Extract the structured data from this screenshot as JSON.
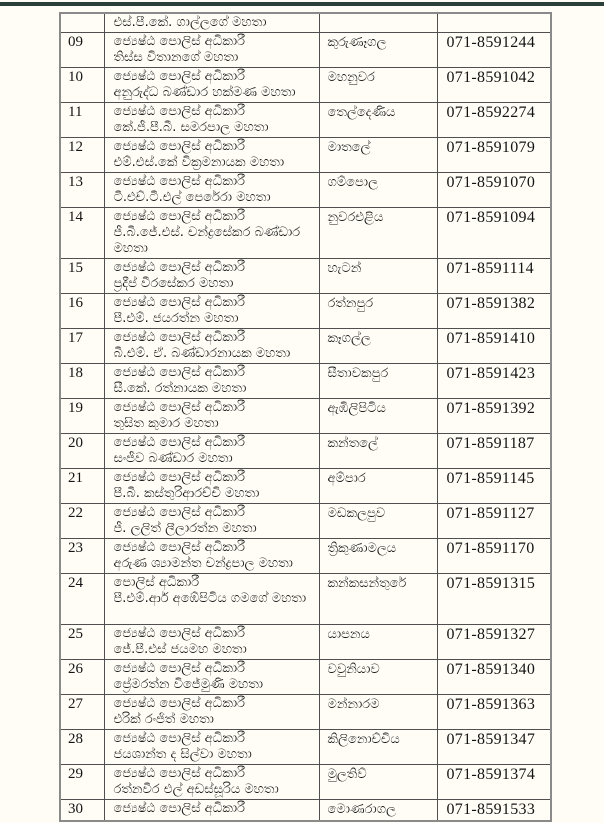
{
  "page": {
    "background_color": "#fffdf6",
    "top_bar_color": "#2b4038",
    "text_color": "#141414"
  },
  "table": {
    "columns": [
      "no",
      "officer",
      "location",
      "phone"
    ],
    "rows": [
      {
        "no": "",
        "title": "",
        "person": "එස්.පී.කේ. ගාල්ලගේ මහතා",
        "location": "",
        "phone": "",
        "lines": 1
      },
      {
        "no": "09",
        "title": "ජ්‍යෙෂ්ඨ පොලිස් අධිකාරී",
        "person": "තිස්ස විතානගේ මහතා",
        "location": "කුරුණෑගල",
        "phone": "071-8591244",
        "lines": 2
      },
      {
        "no": "10",
        "title": "ජ්‍යෙෂ්ඨ පොලිස් අධිකාරී",
        "person": "අනුරුද්ධ බණ්ඩාර හක්මණ මහතා",
        "location": "මහනුවර",
        "phone": "071-8591042",
        "lines": 2
      },
      {
        "no": "11",
        "title": "ජ්‍යෙෂ්ඨ පොලිස් අධිකාරී",
        "person": "කේ.ජී.පී.බී. සමරපාල මහතා",
        "location": "තෙල්දෙණිය",
        "phone": "071-8592274",
        "lines": 2
      },
      {
        "no": "12",
        "title": "ජ්‍යෙෂ්ඨ පොලිස් අධිකාරී",
        "person": "එම්.එස්.කේ වික්‍රමනායක මහතා",
        "location": "මාතලේ",
        "phone": "071-8591079",
        "lines": 2
      },
      {
        "no": "13",
        "title": "ජ්‍යෙෂ්ඨ පොලිස් අධිකාරී",
        "person": "ටී.එච්.ටී.එල් පෙරේරා මහතා",
        "location": "ගම්පොල",
        "phone": "071-8591070",
        "lines": 2
      },
      {
        "no": "14",
        "title": "ජ්‍යෙෂ්ඨ පොලිස් අධිකාරී",
        "person": "ජී.බී.ජේ.එස්. චන්ද්‍රසේකර බණ්ඩාර මහතා",
        "location": "නුවරඑළිය",
        "phone": "071-8591094",
        "lines": 3
      },
      {
        "no": "15",
        "title": "ජ්‍යෙෂ්ඨ පොලිස් අධිකාරී",
        "person": "ප්‍රදීප් වීරසේකර මහතා",
        "location": "හැටන්",
        "phone": "071-8591114",
        "lines": 2
      },
      {
        "no": "16",
        "title": "ජ්‍යෙෂ්ඨ පොලිස් අධිකාරී",
        "person": "පී.එම්. ජයරත්න  මහතා",
        "location": "රත්නපුර",
        "phone": "071-8591382",
        "lines": 2
      },
      {
        "no": "17",
        "title": "ජ්‍යෙෂ්ඨ පොලිස් අධිකාරී",
        "person": "බී.එම්. ඒ. බණ්ඩාරනායක මහතා",
        "location": "කෑගල්ල",
        "phone": "071-8591410",
        "lines": 2
      },
      {
        "no": "18",
        "title": "ජ්‍යෙෂ්ඨ පොලිස් අධිකාරී",
        "person": "සී.කේ. රත්නායක මහතා",
        "location": "සීතාවකපුර",
        "phone": "071-8591423",
        "lines": 2
      },
      {
        "no": "19",
        "title": "ජ්‍යෙෂ්ඨ පොලිස් අධිකාරී",
        "person": "තුසිත කුමාර මහතා",
        "location": "ඇඹිලිපිටිය",
        "phone": "071-8591392",
        "lines": 2
      },
      {
        "no": "20",
        "title": "ජ්‍යෙෂ්ඨ පොලිස් අධිකාරී",
        "person": "සංජීව බණ්ඩාර මහතා",
        "location": "කන්තලේ",
        "phone": "071-8591187",
        "lines": 2
      },
      {
        "no": "21",
        "title": "ජ්‍යෙෂ්ඨ පොලිස් අධිකාරී",
        "person": "පී.බී. කස්තුරිආරච්චි මහතා",
        "location": "අම්පාර",
        "phone": "071-8591145",
        "lines": 2
      },
      {
        "no": "22",
        "title": "ජ්‍යෙෂ්ඨ පොලිස් අධිකාරී",
        "person": "ජී. ලලිත් ලීලාරත්න මහතා",
        "location": "මඩකලපුව",
        "phone": "071-8591127",
        "lines": 2
      },
      {
        "no": "23",
        "title": "ජ්‍යෙෂ්ඨ පොලිස් අධිකාරී",
        "person": "අරුණ ශ්‍යාමන්ත චන්ද්‍රපාල මහතා",
        "location": "ත්‍රිකුණාමලය",
        "phone": "071-8591170",
        "lines": 2
      },
      {
        "no": "24",
        "title": "පොලිස් අධිකාරී",
        "person": "පී.එම්.ආර් අඹේපිටිය ගමගේ මහතා",
        "location": "කන්කසන්තුරේ",
        "phone": "071-8591315",
        "lines": 3
      },
      {
        "no": "25",
        "title": "ජ්‍යෙෂ්ඨ පොලිස් අධිකාරී",
        "person": "ජේ.පී.එස් ජයමහ මහතා",
        "location": "යාපනය",
        "phone": "071-8591327",
        "lines": 2
      },
      {
        "no": "26",
        "title": "ජ්‍යෙෂ්ඨ පොලිස් අධිකාරී",
        "person": "ප්‍රේමරත්න විජේමුණි මහතා",
        "location": "වවුනියාව",
        "phone": "071-8591340",
        "lines": 2
      },
      {
        "no": "27",
        "title": "ජ්‍යෙෂ්ඨ පොලිස් අධිකාරී",
        "person": "එරික් රංජිත් මහතා",
        "location": "මන්නාරම",
        "phone": "071-8591363",
        "lines": 2
      },
      {
        "no": "28",
        "title": "ජ්‍යෙෂ්ඨ පොලිස් අධිකාරී",
        "person": "ජයශාන්ත ද සිල්වා  මහතා",
        "location": "කිලිනොච්චිය",
        "phone": "071-8591347",
        "lines": 2
      },
      {
        "no": "29",
        "title": "ජ්‍යෙෂ්ඨ පොලිස් අධිකාරී",
        "person": "රත්නවීර එල් අඩස්සූරිය  මහතා",
        "location": "මුලතිව්",
        "phone": "071-8591374",
        "lines": 2
      },
      {
        "no": "30",
        "title": "ජ්‍යෙෂ්ඨ පොලිස් අධිකාරී",
        "person": "",
        "location": "මොණරාගල",
        "phone": "071-8591533",
        "lines": 1
      }
    ]
  }
}
